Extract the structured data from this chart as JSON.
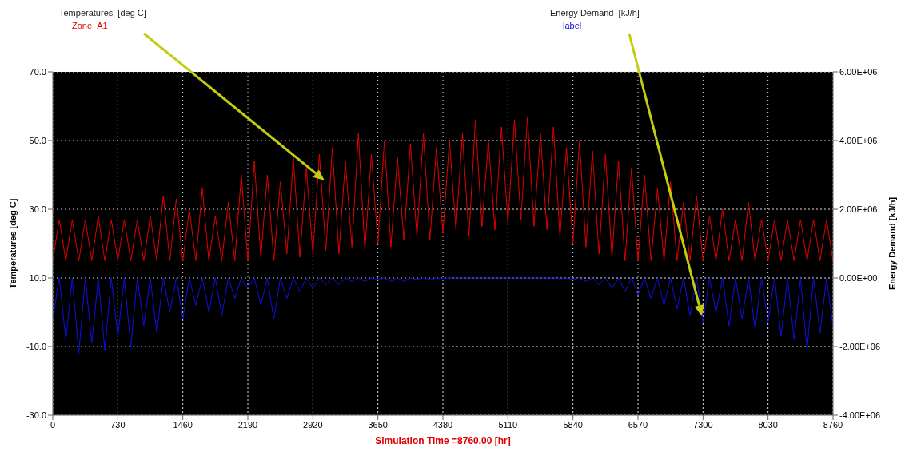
{
  "chart_data": {
    "type": "line",
    "annotations": [
      "Temperatures  [deg C]",
      "Energy Demand  [kJ/h]"
    ],
    "xlabel": "Simulation Time =8760.00 [hr]",
    "ylabel": "Temperatures [deg C]",
    "y2label": "Energy Demand [kJ/h]",
    "x": [
      0,
      73,
      146,
      219,
      292,
      365,
      438,
      511,
      584,
      657,
      730,
      803,
      876,
      949,
      1022,
      1095,
      1168,
      1241,
      1314,
      1387,
      1460,
      1533,
      1606,
      1679,
      1752,
      1825,
      1898,
      1971,
      2044,
      2117,
      2190,
      2263,
      2336,
      2409,
      2482,
      2555,
      2628,
      2701,
      2774,
      2847,
      2920,
      2993,
      3066,
      3139,
      3212,
      3285,
      3358,
      3431,
      3504,
      3577,
      3650,
      3723,
      3796,
      3869,
      3942,
      4015,
      4088,
      4161,
      4234,
      4307,
      4380,
      4453,
      4526,
      4599,
      4672,
      4745,
      4818,
      4891,
      4964,
      5037,
      5110,
      5183,
      5256,
      5329,
      5402,
      5475,
      5548,
      5621,
      5694,
      5767,
      5840,
      5913,
      5986,
      6059,
      6132,
      6205,
      6278,
      6351,
      6424,
      6497,
      6570,
      6643,
      6716,
      6789,
      6862,
      6935,
      7008,
      7081,
      7154,
      7227,
      7300,
      7373,
      7446,
      7519,
      7592,
      7665,
      7738,
      7811,
      7884,
      7957,
      8030,
      8103,
      8176,
      8249,
      8322,
      8395,
      8468,
      8541,
      8614,
      8687,
      8760
    ],
    "series": [
      {
        "name": "Zone_A1",
        "color": "#e00000",
        "axis": "y",
        "values": [
          15,
          27,
          15,
          27,
          15,
          27,
          15,
          28,
          15,
          27,
          15,
          27,
          15,
          27,
          15,
          28,
          15,
          34,
          15,
          33,
          15,
          30,
          15,
          36,
          15,
          28,
          15,
          32,
          15,
          40,
          15,
          44,
          16,
          40,
          15,
          38,
          17,
          45,
          16,
          42,
          17,
          46,
          18,
          48,
          17,
          44,
          19,
          52,
          18,
          46,
          20,
          50,
          19,
          45,
          21,
          49,
          22,
          52,
          21,
          48,
          23,
          50,
          24,
          52,
          22,
          56,
          25,
          50,
          24,
          54,
          26,
          56,
          27,
          57,
          25,
          52,
          24,
          54,
          22,
          48,
          20,
          50,
          19,
          47,
          17,
          46,
          16,
          44,
          15,
          42,
          15,
          40,
          15,
          36,
          15,
          38,
          15,
          32,
          15,
          34,
          15,
          28,
          15,
          30,
          15,
          27,
          15,
          32,
          15,
          27,
          15,
          27,
          15,
          27,
          15,
          27,
          15,
          27,
          15,
          27,
          15
        ]
      },
      {
        "name": "label",
        "color": "#1010e0",
        "axis": "y2",
        "values": [
          -1200000,
          0,
          -1800000,
          0,
          -2200000,
          0,
          -1900000,
          0,
          -2100000,
          0,
          -1700000,
          0,
          -2000000,
          0,
          -1400000,
          0,
          -1600000,
          0,
          -1000000,
          0,
          -1200000,
          0,
          -800000,
          0,
          -1000000,
          0,
          -1100000,
          0,
          -600000,
          0,
          -300000,
          0,
          -800000,
          0,
          -1200000,
          0,
          -600000,
          0,
          -400000,
          0,
          -300000,
          0,
          -200000,
          0,
          -200000,
          0,
          -100000,
          0,
          -100000,
          0,
          -50000,
          0,
          -100000,
          0,
          -100000,
          0,
          -50000,
          0,
          -50000,
          0,
          -20000,
          0,
          0,
          0,
          0,
          0,
          0,
          0,
          0,
          0,
          0,
          0,
          0,
          0,
          0,
          0,
          0,
          0,
          -20000,
          0,
          -50000,
          0,
          -100000,
          0,
          -200000,
          0,
          -300000,
          0,
          -400000,
          0,
          -500000,
          0,
          -600000,
          0,
          -800000,
          0,
          -900000,
          0,
          -1100000,
          0,
          -1300000,
          0,
          -1000000,
          0,
          -1400000,
          0,
          -1200000,
          0,
          -1500000,
          0,
          -1300000,
          0,
          -1700000,
          0,
          -1800000,
          0,
          -2100000,
          0,
          -1600000,
          0,
          -1400000
        ]
      }
    ],
    "xlim": [
      0,
      8760
    ],
    "xticks": [
      0,
      730,
      1460,
      2190,
      2920,
      3650,
      4380,
      5110,
      5840,
      6570,
      7300,
      8030,
      8760
    ],
    "ylim": [
      -30,
      70
    ],
    "yticks": [
      {
        "value": -30,
        "label": "-30.0"
      },
      {
        "value": -10,
        "label": "-10.0"
      },
      {
        "value": 10,
        "label": "10.0"
      },
      {
        "value": 30,
        "label": "30.0"
      },
      {
        "value": 50,
        "label": "50.0"
      },
      {
        "value": 70,
        "label": "70.0"
      }
    ],
    "y2lim": [
      -4000000,
      6000000
    ],
    "y2ticks": [
      {
        "value": -4000000,
        "label": "-4.00E+06"
      },
      {
        "value": -2000000,
        "label": "-2.00E+06"
      },
      {
        "value": 0,
        "label": "0.00E+00"
      },
      {
        "value": 2000000,
        "label": "2.00E+06"
      },
      {
        "value": 4000000,
        "label": "4.00E+06"
      },
      {
        "value": 6000000,
        "label": "6.00E+06"
      }
    ],
    "grid": true,
    "legend": "top",
    "marker": "none",
    "line_style": "solid"
  }
}
